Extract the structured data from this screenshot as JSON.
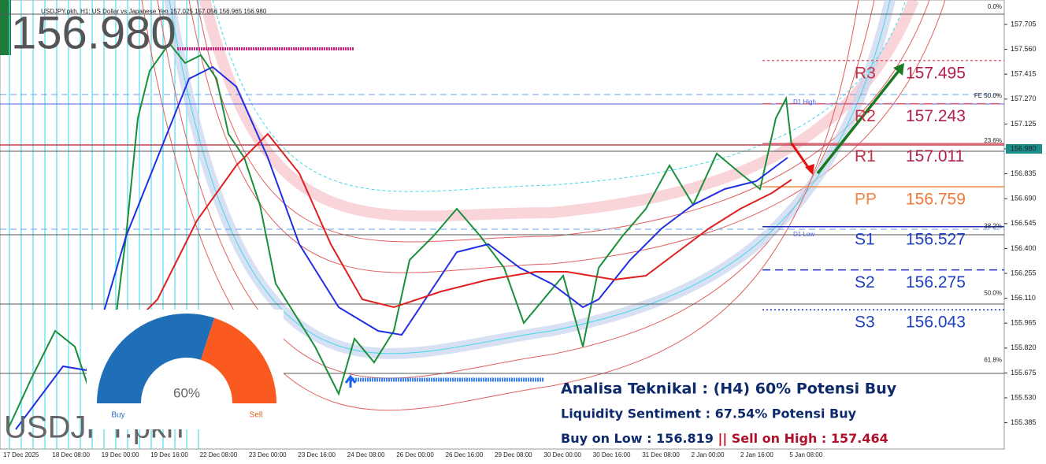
{
  "header": {
    "symbol_line": "USDJPY.pkh, H1:  US Dollar vs Japanese Yen  157.025 157.056 156.965 156.980",
    "big_price": "156.980",
    "watermark": "USDJPY.pkh"
  },
  "price_axis": [
    "157.705",
    "157.560",
    "157.415",
    "157.270",
    "157.125",
    "156.980",
    "156.835",
    "156.690",
    "156.545",
    "156.400",
    "156.255",
    "156.110",
    "155.965",
    "155.820",
    "155.675",
    "155.530",
    "155.385"
  ],
  "time_axis": [
    "17 Dec 2025",
    "18 Dec 08:00",
    "19 Dec 00:00",
    "19 Dec 16:00",
    "22 Dec 08:00",
    "23 Dec 00:00",
    "23 Dec 16:00",
    "24 Dec 08:00",
    "26 Dec 00:00",
    "26 Dec 16:00",
    "29 Dec 08:00",
    "30 Dec 00:00",
    "30 Dec 16:00",
    "31 Dec 08:00",
    "2 Jan 00:00",
    "2 Jan 16:00",
    "5 Jan 08:00"
  ],
  "fib_labels": [
    {
      "label": "0.0%",
      "price": 157.78
    },
    {
      "label": "FE 50.0%",
      "price": 157.26
    },
    {
      "label": "23.6%",
      "price": 157.0
    },
    {
      "label": "38.2%",
      "price": 156.5
    },
    {
      "label": "50.0%",
      "price": 156.11
    },
    {
      "label": "61.8%",
      "price": 155.72
    }
  ],
  "daily_labels": {
    "high": "D1 High",
    "low": "D1 Low"
  },
  "pivots": [
    {
      "name": "R3",
      "value": "157.495"
    },
    {
      "name": "R2",
      "value": "157.243"
    },
    {
      "name": "R1",
      "value": "157.011"
    },
    {
      "name": "PP",
      "value": "156.759"
    },
    {
      "name": "S1",
      "value": "156.527"
    },
    {
      "name": "S2",
      "value": "156.275"
    },
    {
      "name": "S3",
      "value": "156.043"
    }
  ],
  "gauge": {
    "value": 60,
    "label": "60%",
    "left": "Buy",
    "right": "Sell"
  },
  "analysis": {
    "line1": "Analisa Teknikal   :  (H4) 60% Potensi Buy",
    "line2": "Liquidity Sentiment :  67.54% Potensi Buy",
    "line3_buy": "Buy on Low : 156.819 ",
    "line3_sep": "||",
    "line3_sell": " Sell on High : 157.464"
  }
}
